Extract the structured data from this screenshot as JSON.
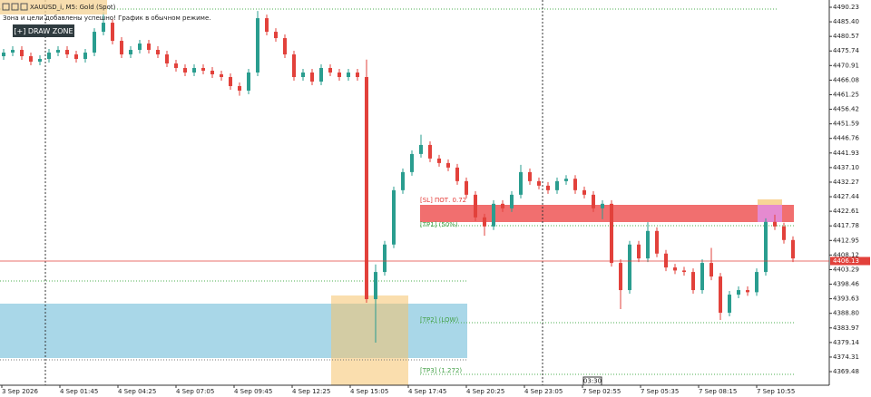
{
  "chart_data": {
    "type": "candlestick",
    "title": "XAUUSD_i, M5: Gold (Spot)",
    "notice": "Зона и цели добавлены успешно! График в обычном режиме.",
    "button": "[+] DRAW ZONE",
    "annotations": [
      "[SL] ПОТ. 0.72",
      "[TP1] (50%)",
      "[TP2] (LOW)",
      "[TP3] (1.272)"
    ],
    "time_marker": "03:30",
    "xlabels": [
      "3 Sep 2026",
      "4 Sep 01:45",
      "4 Sep 04:25",
      "4 Sep 07:05",
      "4 Sep 09:45",
      "4 Sep 12:25",
      "4 Sep 15:05",
      "4 Sep 17:45",
      "4 Sep 20:25",
      "4 Sep 23:05",
      "7 Sep 02:55",
      "7 Sep 05:35",
      "7 Sep 08:15",
      "7 Sep 10:55"
    ],
    "open": [
      4474.0,
      4475.2,
      4476.1,
      4474.0,
      4472.2,
      4473.1,
      4475.2,
      4476.1,
      4474.6,
      4473.1,
      4475.2,
      4482.1,
      4485.1,
      4479.1,
      4474.6,
      4476.1,
      4478.2,
      4476.1,
      4474.6,
      4471.6,
      4470.1,
      4468.6,
      4470.1,
      4469.2,
      4468.0,
      4467.1,
      4464.1,
      4462.6,
      4468.6,
      4486.6,
      4482.1,
      4480.0,
      4474.6,
      4467.1,
      4468.6,
      4465.6,
      4470.1,
      4468.6,
      4467.1,
      4468.6,
      4467.1,
      4393.5,
      4402.5,
      4411.6,
      4429.6,
      4435.6,
      4441.6,
      4444.6,
      4440.1,
      4438.6,
      4437.1,
      4432.6,
      4428.1,
      4420.6,
      4417.6,
      4425.1,
      4423.6,
      4428.1,
      4435.6,
      4432.6,
      4431.1,
      4429.6,
      4432.6,
      4433.4,
      4429.6,
      4428.1,
      4423.6,
      4425.1,
      4405.5,
      4396.5,
      4411.6,
      4407.0,
      4416.1,
      4408.6,
      4404.0,
      4403.0,
      4402.5,
      4396.5,
      4405.5,
      4401.0,
      4389.0,
      4395.0,
      4396.5,
      4395.8,
      4402.5,
      4419.1,
      4417.6,
      4413.1
    ],
    "high": [
      4476.4,
      4477.3,
      4477.3,
      4475.2,
      4474.3,
      4476.4,
      4477.3,
      4477.3,
      4475.8,
      4476.4,
      4483.3,
      4488.6,
      4486.3,
      4480.3,
      4477.3,
      4479.4,
      4479.4,
      4477.3,
      4475.8,
      4472.8,
      4471.3,
      4471.3,
      4471.3,
      4470.4,
      4469.2,
      4468.3,
      4465.3,
      4469.8,
      4489.0,
      4487.8,
      4483.3,
      4481.2,
      4475.8,
      4469.8,
      4469.8,
      4471.3,
      4471.3,
      4469.8,
      4469.8,
      4469.8,
      4472.9,
      4405.0,
      4412.8,
      4430.8,
      4436.8,
      4442.8,
      4448.0,
      4445.8,
      4441.3,
      4439.8,
      4438.3,
      4433.8,
      4429.3,
      4421.8,
      4426.3,
      4426.3,
      4429.3,
      4438.0,
      4436.8,
      4433.8,
      4432.3,
      4433.8,
      4434.6,
      4434.6,
      4430.8,
      4429.3,
      4426.3,
      4426.3,
      4406.7,
      4412.8,
      4412.8,
      4419.0,
      4417.3,
      4409.8,
      4405.2,
      4404.2,
      4403.7,
      4406.7,
      4410.5,
      4402.2,
      4396.2,
      4397.7,
      4397.7,
      4403.7,
      4420.3,
      4421.5,
      4418.8,
      4414.3
    ],
    "low": [
      4472.8,
      4474.0,
      4472.8,
      4471.0,
      4471.0,
      4471.9,
      4474.0,
      4473.4,
      4471.9,
      4471.9,
      4474.0,
      4480.9,
      4477.9,
      4473.4,
      4473.4,
      4474.9,
      4474.9,
      4473.4,
      4470.4,
      4468.9,
      4467.4,
      4467.4,
      4468.0,
      4466.8,
      4465.9,
      4462.9,
      4460.9,
      4461.4,
      4467.4,
      4480.9,
      4478.8,
      4473.4,
      4465.9,
      4465.9,
      4464.4,
      4464.4,
      4467.4,
      4465.9,
      4465.9,
      4465.9,
      4392.3,
      4379.1,
      4401.3,
      4410.4,
      4428.4,
      4434.4,
      4440.4,
      4438.9,
      4437.4,
      4435.9,
      4431.4,
      4426.9,
      4419.4,
      4414.5,
      4416.4,
      4422.4,
      4422.4,
      4426.9,
      4431.4,
      4429.9,
      4428.4,
      4428.4,
      4431.4,
      4428.4,
      4426.9,
      4422.4,
      4420.0,
      4404.3,
      4390.2,
      4395.3,
      4405.8,
      4405.8,
      4407.4,
      4402.8,
      4401.8,
      4401.3,
      4395.3,
      4395.3,
      4399.8,
      4386.6,
      4387.8,
      4393.8,
      4394.6,
      4394.6,
      4401.3,
      4416.4,
      4411.9,
      4405.8
    ],
    "close": [
      4475.2,
      4476.1,
      4474.0,
      4472.2,
      4473.1,
      4475.2,
      4476.1,
      4474.6,
      4473.1,
      4475.2,
      4482.1,
      4485.1,
      4479.1,
      4474.6,
      4476.1,
      4478.2,
      4476.1,
      4474.6,
      4471.6,
      4470.1,
      4468.6,
      4470.1,
      4469.2,
      4468.0,
      4467.1,
      4464.1,
      4462.6,
      4468.6,
      4486.6,
      4482.1,
      4480.0,
      4474.6,
      4467.1,
      4468.6,
      4465.6,
      4470.1,
      4468.6,
      4467.1,
      4468.6,
      4467.1,
      4393.5,
      4402.5,
      4411.6,
      4429.6,
      4435.6,
      4441.6,
      4444.6,
      4440.1,
      4438.6,
      4437.1,
      4432.6,
      4428.1,
      4420.6,
      4417.6,
      4425.1,
      4423.6,
      4428.1,
      4435.6,
      4432.6,
      4431.1,
      4429.6,
      4432.6,
      4433.4,
      4429.6,
      4428.1,
      4423.6,
      4425.1,
      4405.5,
      4396.5,
      4411.6,
      4407.0,
      4416.1,
      4408.6,
      4404.0,
      4403.0,
      4402.5,
      4396.5,
      4405.5,
      4401.0,
      4389.0,
      4395.0,
      4396.5,
      4395.8,
      4402.5,
      4419.1,
      4417.6,
      4413.1,
      4407.0
    ],
    "up_color": "#2a9d8f",
    "down_color": "#e2413b",
    "ylim": [
      4364.98,
      4492.63
    ],
    "yticks": [
      4490.23,
      {
        "value": 4485.4,
        "label": "4485.40"
      },
      4480.57,
      4475.74,
      4470.91,
      4466.08,
      4461.25,
      4456.42,
      4451.59,
      4446.76,
      4441.93,
      {
        "value": 4437.1,
        "label": "4437.10"
      },
      4432.27,
      4427.44,
      4422.61,
      4417.78,
      4412.95,
      4408.12,
      4403.29,
      4398.46,
      4393.63,
      {
        "value": 4388.8,
        "label": "4388.80"
      },
      4383.97,
      4379.14,
      4374.31,
      4369.48
    ],
    "current_price": 4406.13,
    "grid": false
  }
}
